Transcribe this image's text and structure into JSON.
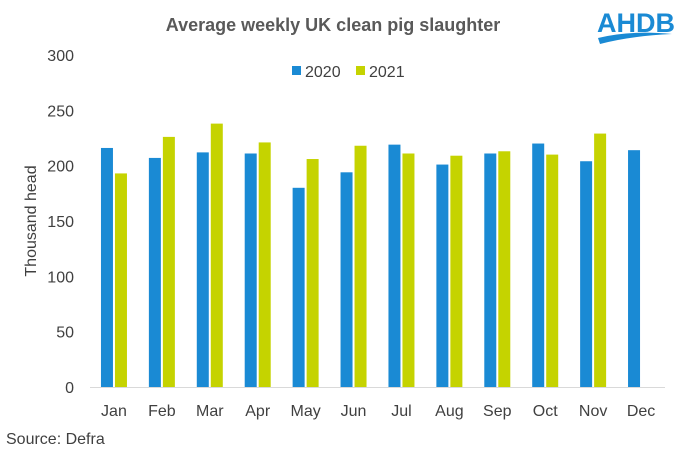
{
  "logo": {
    "text": "AHDB",
    "color": "#1a8ad4"
  },
  "source": "Source: Defra",
  "chart_data": {
    "type": "bar",
    "title": "Average weekly UK clean pig slaughter",
    "xlabel": "",
    "ylabel": "Thousand head",
    "ylim": [
      0,
      300
    ],
    "yticks": [
      0,
      50,
      100,
      150,
      200,
      250,
      300
    ],
    "grid": false,
    "legend": "top-center",
    "categories": [
      "Jan",
      "Feb",
      "Mar",
      "Apr",
      "May",
      "Jun",
      "Jul",
      "Aug",
      "Sep",
      "Oct",
      "Nov",
      "Dec"
    ],
    "series": [
      {
        "name": "2020",
        "color": "#1a8ad4",
        "values": [
          216,
          207,
          212,
          211,
          180,
          194,
          219,
          201,
          211,
          220,
          204,
          214
        ]
      },
      {
        "name": "2021",
        "color": "#c5d300",
        "values": [
          193,
          226,
          238,
          221,
          206,
          218,
          211,
          209,
          213,
          210,
          229,
          null
        ]
      }
    ]
  }
}
